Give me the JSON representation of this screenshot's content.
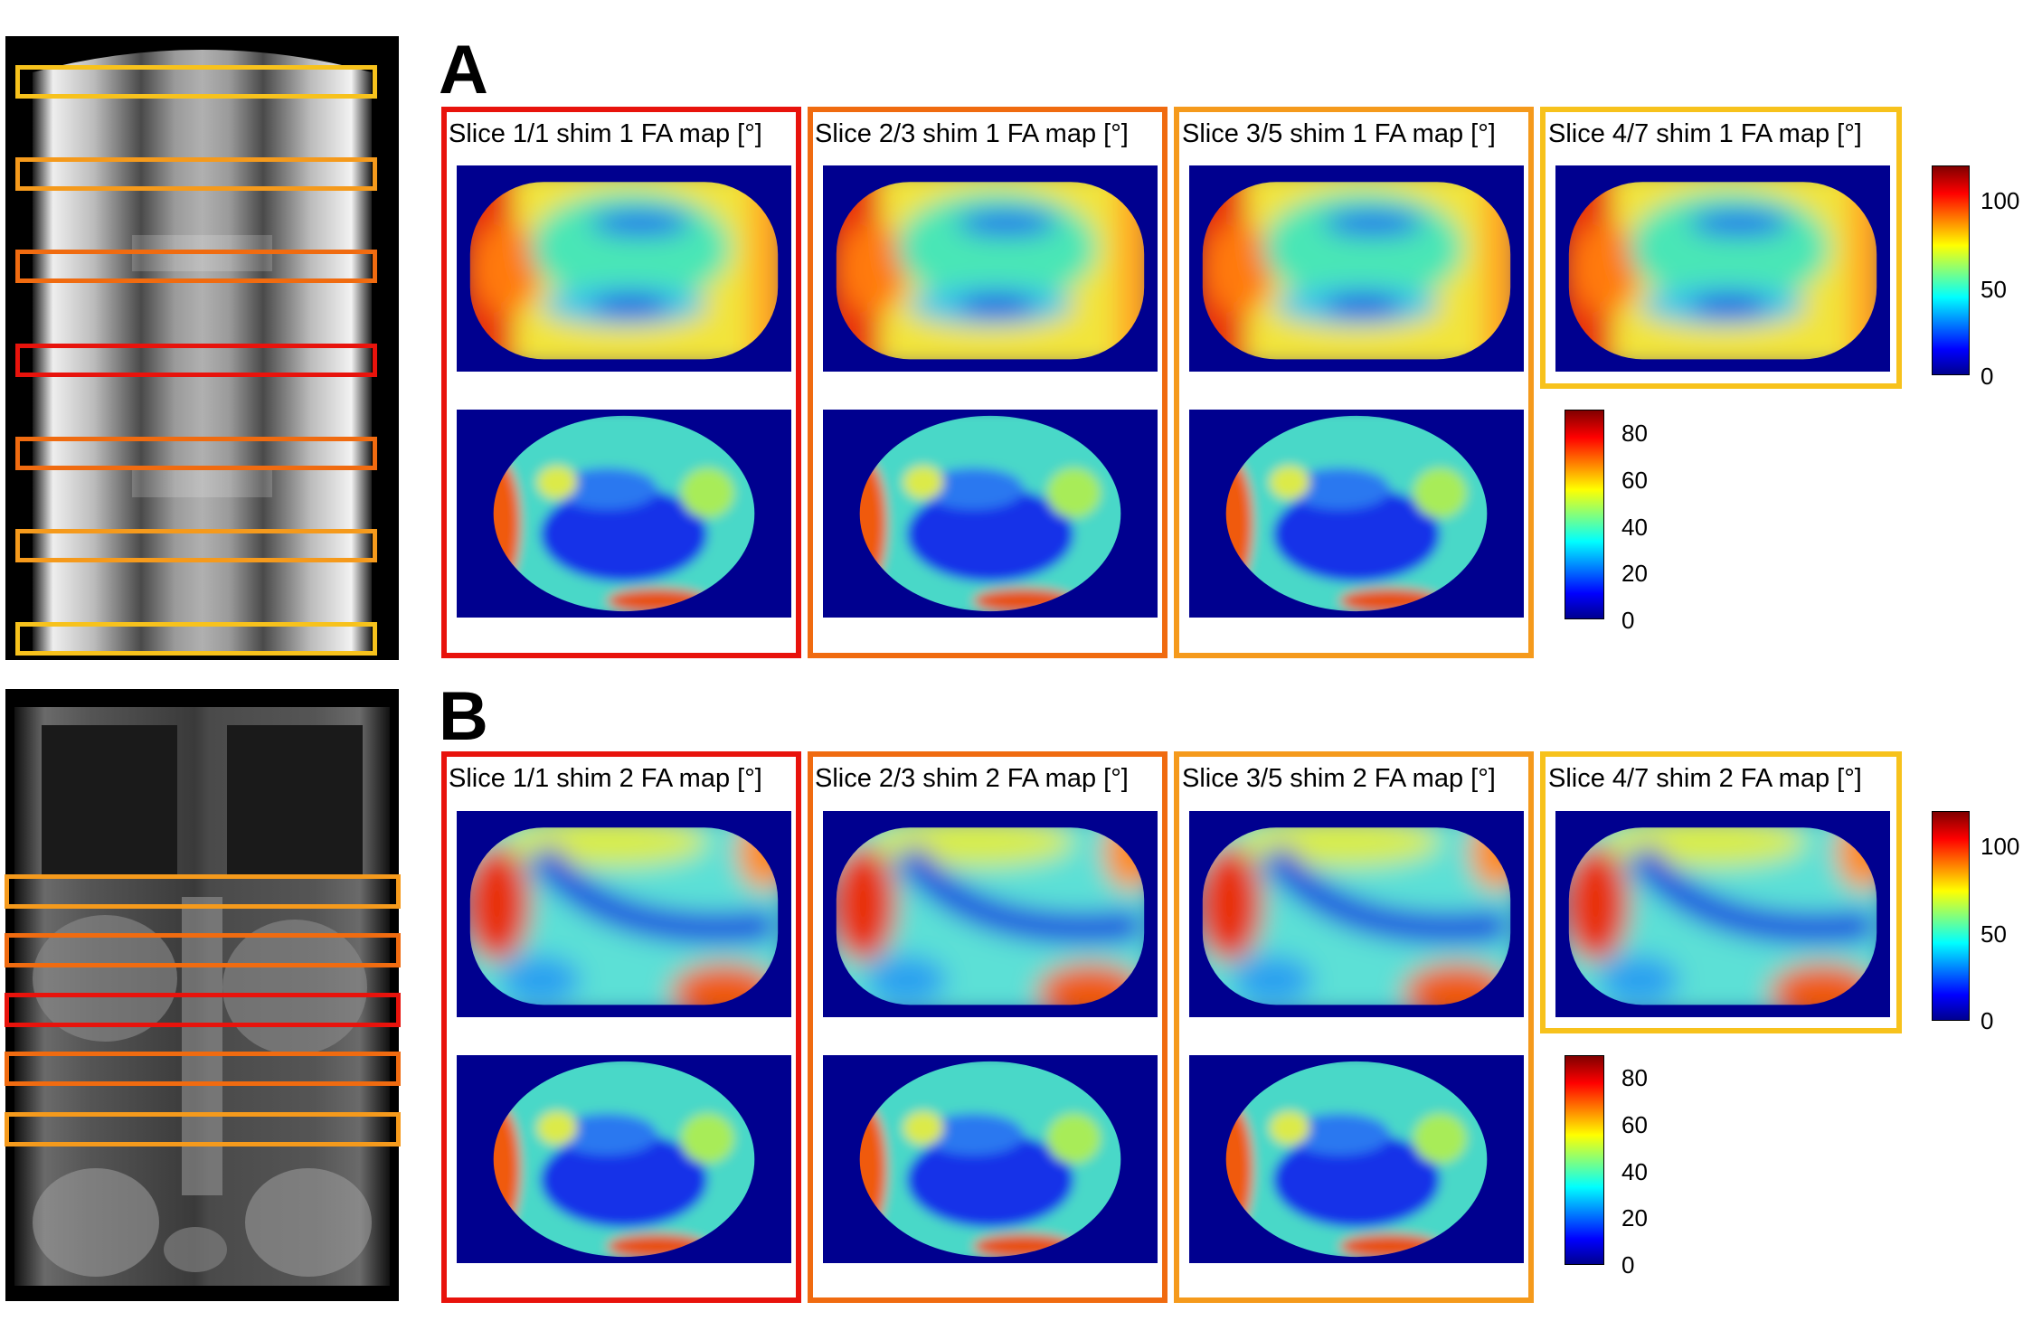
{
  "panels": [
    {
      "letter": "A",
      "scout_type": "localizer",
      "fa_maps": [
        {
          "title": "Slice 1/1 shim 1 FA map [°]",
          "color": "#e8130c"
        },
        {
          "title": "Slice 2/3 shim 1 FA map [°]",
          "color": "#f06b10"
        },
        {
          "title": "Slice 3/5 shim 1 FA map [°]",
          "color": "#f59a1c"
        },
        {
          "title": "Slice 4/7 shim 1 FA map [°]",
          "color": "#f7c21c"
        }
      ],
      "colorbar_top": {
        "ticks": [
          "100",
          "50",
          "0"
        ]
      },
      "colorbar_bottom": {
        "ticks": [
          "80",
          "60",
          "40",
          "20",
          "0"
        ]
      }
    },
    {
      "letter": "B",
      "scout_type": "anatomy",
      "fa_maps": [
        {
          "title": "Slice 1/1 shim 2 FA map [°]",
          "color": "#e8130c"
        },
        {
          "title": "Slice 2/3 shim 2 FA map [°]",
          "color": "#f06b10"
        },
        {
          "title": "Slice 3/5 shim 2 FA map [°]",
          "color": "#f59a1c"
        },
        {
          "title": "Slice 4/7 shim 2 FA map [°]",
          "color": "#f7c21c"
        }
      ],
      "colorbar_top": {
        "ticks": [
          "100",
          "50",
          "0"
        ]
      },
      "colorbar_bottom": {
        "ticks": [
          "80",
          "60",
          "40",
          "20",
          "0"
        ]
      }
    }
  ],
  "colors": {
    "slice1": "#e8130c",
    "slice2": "#f06b10",
    "slice3": "#f59a1c",
    "slice4": "#f7c21c",
    "map_background": "#00008f"
  }
}
